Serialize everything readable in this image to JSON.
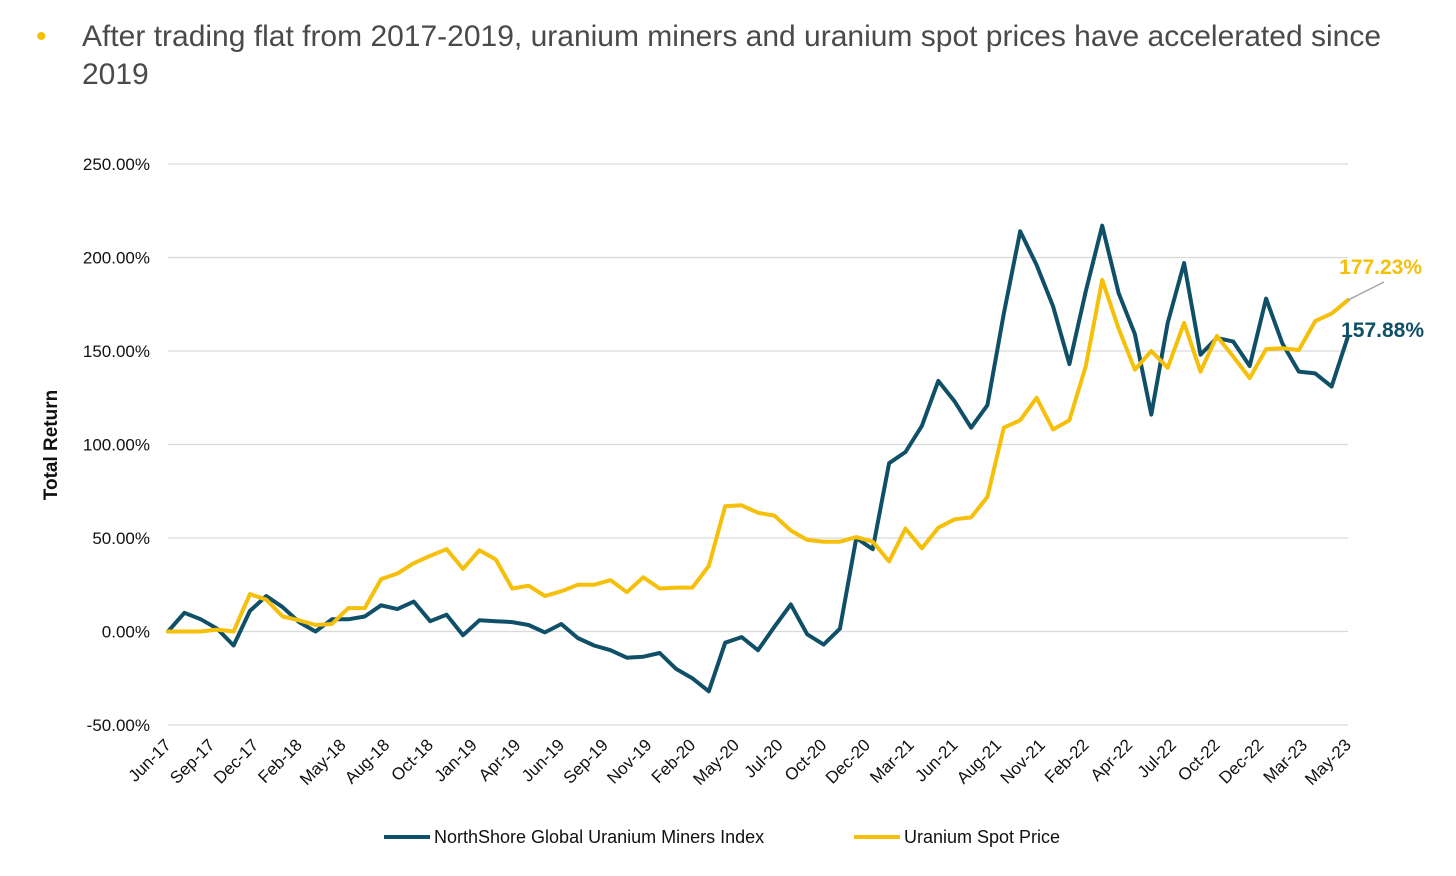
{
  "header": {
    "bullet_text": "After trading flat from 2017-2019, uranium miners and uranium spot prices have accelerated since 2019"
  },
  "colors": {
    "bullet": "#f5c000",
    "miners": "#0f5068",
    "spot": "#f5bf0a",
    "grid": "#d9d9d9"
  },
  "chart_data": {
    "type": "line",
    "ylabel": "Total Return",
    "xlabel": "",
    "ylim": [
      -50,
      250
    ],
    "ytick_values": [
      -50,
      0,
      50,
      100,
      150,
      200,
      250
    ],
    "ytick_labels": [
      "-50.00%",
      "0.00%",
      "50.00%",
      "100.00%",
      "150.00%",
      "200.00%",
      "250.00%"
    ],
    "xtick_labels": [
      "Jun-17",
      "Sep-17",
      "Dec-17",
      "Feb-18",
      "May-18",
      "Aug-18",
      "Oct-18",
      "Jan-19",
      "Apr-19",
      "Jun-19",
      "Sep-19",
      "Nov-19",
      "Feb-20",
      "May-20",
      "Jul-20",
      "Oct-20",
      "Dec-20",
      "Mar-21",
      "Jun-21",
      "Aug-21",
      "Nov-21",
      "Feb-22",
      "Apr-22",
      "Jul-22",
      "Oct-22",
      "Dec-22",
      "Mar-23",
      "May-23"
    ],
    "grid": "horizontal",
    "legend_position": "bottom",
    "series": [
      {
        "name": "NorthShore Global Uranium Miners Index",
        "values": [
          0,
          10,
          6.5,
          1.5,
          -7.5,
          11,
          19,
          13,
          5,
          0,
          6.5,
          6.5,
          8,
          14,
          12,
          16,
          5.5,
          9,
          -2,
          6,
          5.5,
          5,
          3.5,
          -0.5,
          4,
          -3.5,
          -7.5,
          -10,
          -14,
          -13.5,
          -11.5,
          -20,
          -25,
          -32,
          -6,
          -3,
          -10,
          2.5,
          14.5,
          -1.5,
          -7,
          1.5,
          50,
          44,
          90,
          96,
          110,
          134,
          123,
          109,
          121,
          170,
          214,
          196,
          174,
          143,
          182,
          217,
          181,
          159,
          116,
          165,
          197,
          148,
          157,
          155,
          142,
          178,
          154,
          139,
          138,
          131,
          157.88
        ],
        "end_label": "157.88%"
      },
      {
        "name": "Uranium Spot Price",
        "values": [
          0,
          0,
          0,
          1,
          0,
          20,
          17,
          8,
          6,
          3.5,
          4,
          12.5,
          12.5,
          28,
          31,
          36.5,
          40.5,
          44,
          33.5,
          43.5,
          38.5,
          23,
          24.5,
          19,
          21.5,
          25,
          25,
          27.5,
          21,
          29,
          23,
          23.5,
          23.5,
          35,
          67,
          67.5,
          63.5,
          62,
          54,
          49,
          48,
          48,
          50.5,
          48,
          37.5,
          55,
          44.5,
          55.5,
          60,
          61,
          72,
          109,
          113,
          125,
          108,
          113,
          142,
          188,
          162,
          140,
          150,
          141,
          165,
          139,
          158,
          147,
          135.5,
          151,
          151.5,
          150.5,
          166,
          170,
          177.23
        ],
        "end_label": "177.23%"
      }
    ]
  }
}
